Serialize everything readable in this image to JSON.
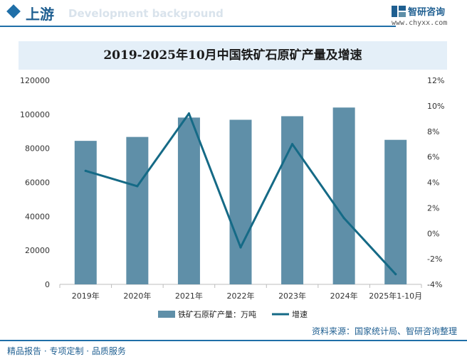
{
  "header": {
    "section_title": "上游",
    "background_word": "Development background",
    "logo_name": "智研咨询",
    "logo_url": "www.chyxx.com"
  },
  "footer": {
    "left_text": "精品报告 · 专项定制 · 品质服务",
    "source_text": "资料来源：国家统计局、智研咨询整理"
  },
  "colors": {
    "bar": "#5f8fa8",
    "line": "#156a86",
    "accent": "#1f6fa8",
    "title_bg": "#e4eff8"
  },
  "chart_data": {
    "type": "bar",
    "title": "2019-2025年10月中国铁矿石原矿产量及增速",
    "categories": [
      "2019年",
      "2020年",
      "2021年",
      "2022年",
      "2023年",
      "2024年",
      "2025年1-10月"
    ],
    "series": [
      {
        "name": "铁矿石原矿产量：万吨",
        "type": "bar",
        "axis": "left",
        "values": [
          84400,
          86700,
          98100,
          96800,
          98900,
          104000,
          85000
        ]
      },
      {
        "name": "增速",
        "type": "line",
        "axis": "right",
        "values": [
          4.9,
          3.7,
          9.4,
          -1.1,
          7.0,
          1.2,
          -3.2
        ]
      }
    ],
    "y_left": {
      "ylim": [
        0,
        120000
      ],
      "ticks": [
        "0",
        "20000",
        "40000",
        "60000",
        "80000",
        "100000",
        "120000"
      ]
    },
    "y_right": {
      "ylim": [
        -4,
        12
      ],
      "ticks": [
        "-4%",
        "-2%",
        "0%",
        "2%",
        "4%",
        "6%",
        "8%",
        "10%",
        "12%"
      ]
    },
    "legend_placement": "bottom-center",
    "grid": false
  }
}
